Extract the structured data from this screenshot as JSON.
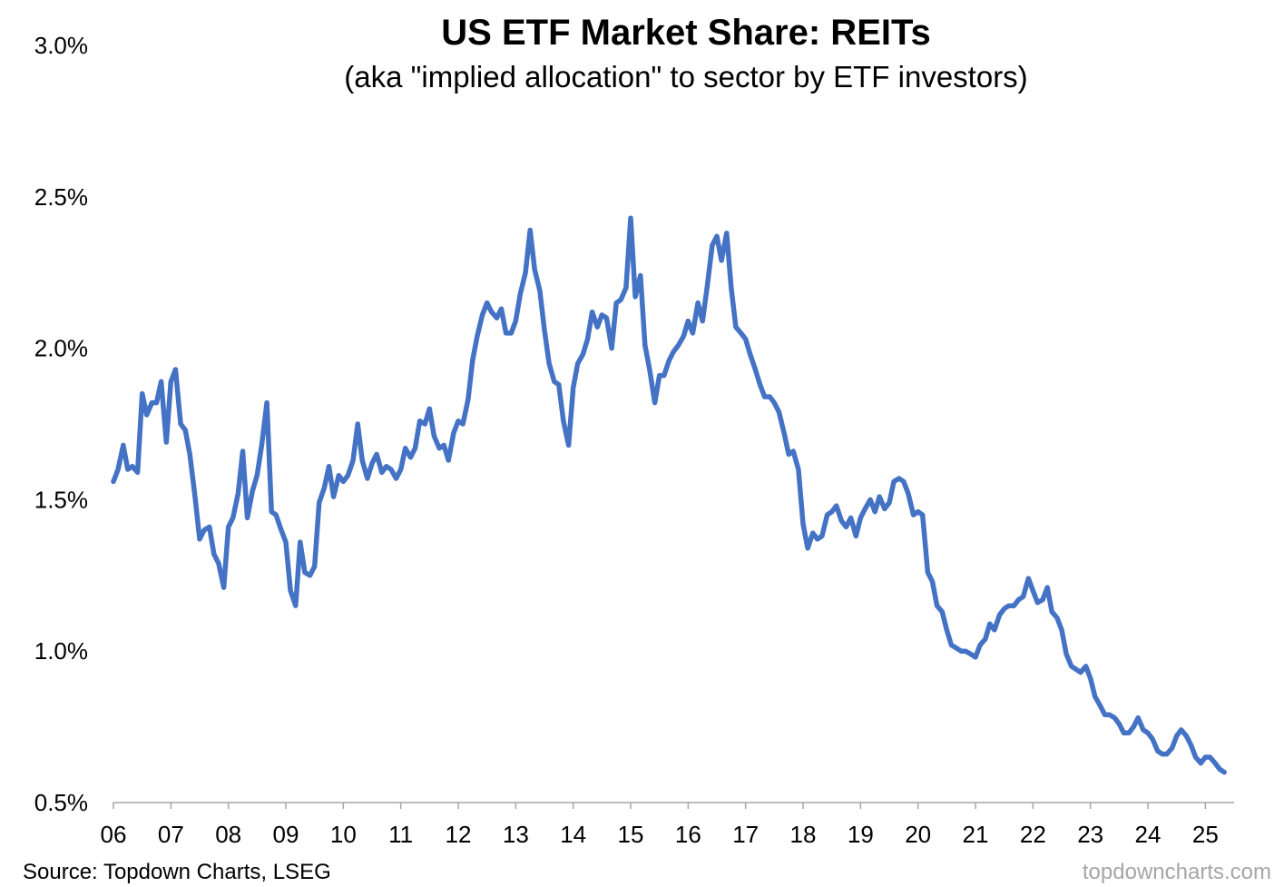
{
  "chart_data": {
    "type": "line",
    "title": "US ETF Market Share: REITs",
    "subtitle": "(aka \"implied allocation\" to sector by ETF investors)",
    "xlabel": "",
    "ylabel": "",
    "ylim": [
      0.5,
      3.0
    ],
    "xlim": [
      2006.0,
      2025.5
    ],
    "y_ticks": [
      {
        "value": 0.5,
        "label": "0.5%"
      },
      {
        "value": 1.0,
        "label": "1.0%"
      },
      {
        "value": 1.5,
        "label": "1.5%"
      },
      {
        "value": 2.0,
        "label": "2.0%"
      },
      {
        "value": 2.5,
        "label": "2.5%"
      },
      {
        "value": 3.0,
        "label": "3.0%"
      }
    ],
    "x_ticks": [
      {
        "value": 2006,
        "label": "06"
      },
      {
        "value": 2007,
        "label": "07"
      },
      {
        "value": 2008,
        "label": "08"
      },
      {
        "value": 2009,
        "label": "09"
      },
      {
        "value": 2010,
        "label": "10"
      },
      {
        "value": 2011,
        "label": "11"
      },
      {
        "value": 2012,
        "label": "12"
      },
      {
        "value": 2013,
        "label": "13"
      },
      {
        "value": 2014,
        "label": "14"
      },
      {
        "value": 2015,
        "label": "15"
      },
      {
        "value": 2016,
        "label": "16"
      },
      {
        "value": 2017,
        "label": "17"
      },
      {
        "value": 2018,
        "label": "18"
      },
      {
        "value": 2019,
        "label": "19"
      },
      {
        "value": 2020,
        "label": "20"
      },
      {
        "value": 2021,
        "label": "21"
      },
      {
        "value": 2022,
        "label": "22"
      },
      {
        "value": 2023,
        "label": "23"
      },
      {
        "value": 2024,
        "label": "24"
      },
      {
        "value": 2025,
        "label": "25"
      }
    ],
    "grid": false,
    "legend": "none",
    "series": [
      {
        "name": "US ETF Market Share: REITs",
        "color": "#4472c4",
        "points": [
          [
            2006.0,
            1.56
          ],
          [
            2006.08,
            1.6
          ],
          [
            2006.17,
            1.68
          ],
          [
            2006.25,
            1.6
          ],
          [
            2006.33,
            1.61
          ],
          [
            2006.42,
            1.59
          ],
          [
            2006.5,
            1.85
          ],
          [
            2006.58,
            1.78
          ],
          [
            2006.67,
            1.82
          ],
          [
            2006.75,
            1.82
          ],
          [
            2006.83,
            1.89
          ],
          [
            2006.92,
            1.69
          ],
          [
            2007.0,
            1.89
          ],
          [
            2007.08,
            1.93
          ],
          [
            2007.17,
            1.75
          ],
          [
            2007.25,
            1.73
          ],
          [
            2007.33,
            1.65
          ],
          [
            2007.42,
            1.51
          ],
          [
            2007.5,
            1.37
          ],
          [
            2007.58,
            1.4
          ],
          [
            2007.67,
            1.41
          ],
          [
            2007.75,
            1.32
          ],
          [
            2007.83,
            1.29
          ],
          [
            2007.92,
            1.21
          ],
          [
            2008.0,
            1.41
          ],
          [
            2008.08,
            1.44
          ],
          [
            2008.17,
            1.52
          ],
          [
            2008.25,
            1.66
          ],
          [
            2008.33,
            1.44
          ],
          [
            2008.42,
            1.53
          ],
          [
            2008.5,
            1.58
          ],
          [
            2008.58,
            1.68
          ],
          [
            2008.67,
            1.82
          ],
          [
            2008.75,
            1.46
          ],
          [
            2008.83,
            1.45
          ],
          [
            2008.92,
            1.4
          ],
          [
            2009.0,
            1.36
          ],
          [
            2009.08,
            1.2
          ],
          [
            2009.17,
            1.15
          ],
          [
            2009.25,
            1.36
          ],
          [
            2009.33,
            1.26
          ],
          [
            2009.42,
            1.25
          ],
          [
            2009.5,
            1.28
          ],
          [
            2009.58,
            1.49
          ],
          [
            2009.67,
            1.54
          ],
          [
            2009.75,
            1.61
          ],
          [
            2009.83,
            1.51
          ],
          [
            2009.92,
            1.58
          ],
          [
            2010.0,
            1.56
          ],
          [
            2010.08,
            1.58
          ],
          [
            2010.17,
            1.63
          ],
          [
            2010.25,
            1.75
          ],
          [
            2010.33,
            1.63
          ],
          [
            2010.42,
            1.57
          ],
          [
            2010.5,
            1.62
          ],
          [
            2010.58,
            1.65
          ],
          [
            2010.67,
            1.59
          ],
          [
            2010.75,
            1.61
          ],
          [
            2010.83,
            1.6
          ],
          [
            2010.92,
            1.57
          ],
          [
            2011.0,
            1.6
          ],
          [
            2011.08,
            1.67
          ],
          [
            2011.17,
            1.64
          ],
          [
            2011.25,
            1.67
          ],
          [
            2011.33,
            1.76
          ],
          [
            2011.42,
            1.75
          ],
          [
            2011.5,
            1.8
          ],
          [
            2011.58,
            1.71
          ],
          [
            2011.67,
            1.67
          ],
          [
            2011.75,
            1.68
          ],
          [
            2011.83,
            1.63
          ],
          [
            2011.92,
            1.72
          ],
          [
            2012.0,
            1.76
          ],
          [
            2012.08,
            1.75
          ],
          [
            2012.17,
            1.83
          ],
          [
            2012.25,
            1.96
          ],
          [
            2012.33,
            2.04
          ],
          [
            2012.42,
            2.11
          ],
          [
            2012.5,
            2.15
          ],
          [
            2012.58,
            2.12
          ],
          [
            2012.67,
            2.1
          ],
          [
            2012.75,
            2.13
          ],
          [
            2012.83,
            2.05
          ],
          [
            2012.92,
            2.05
          ],
          [
            2013.0,
            2.09
          ],
          [
            2013.08,
            2.18
          ],
          [
            2013.17,
            2.25
          ],
          [
            2013.25,
            2.39
          ],
          [
            2013.33,
            2.26
          ],
          [
            2013.42,
            2.19
          ],
          [
            2013.5,
            2.06
          ],
          [
            2013.58,
            1.95
          ],
          [
            2013.67,
            1.89
          ],
          [
            2013.75,
            1.88
          ],
          [
            2013.83,
            1.76
          ],
          [
            2013.92,
            1.68
          ],
          [
            2014.0,
            1.87
          ],
          [
            2014.08,
            1.95
          ],
          [
            2014.17,
            1.98
          ],
          [
            2014.25,
            2.03
          ],
          [
            2014.33,
            2.12
          ],
          [
            2014.42,
            2.07
          ],
          [
            2014.5,
            2.11
          ],
          [
            2014.58,
            2.1
          ],
          [
            2014.67,
            2.0
          ],
          [
            2014.75,
            2.15
          ],
          [
            2014.83,
            2.16
          ],
          [
            2014.92,
            2.2
          ],
          [
            2015.0,
            2.43
          ],
          [
            2015.08,
            2.17
          ],
          [
            2015.17,
            2.24
          ],
          [
            2015.25,
            2.01
          ],
          [
            2015.33,
            1.93
          ],
          [
            2015.42,
            1.82
          ],
          [
            2015.5,
            1.91
          ],
          [
            2015.58,
            1.91
          ],
          [
            2015.67,
            1.96
          ],
          [
            2015.75,
            1.99
          ],
          [
            2015.83,
            2.01
          ],
          [
            2015.92,
            2.04
          ],
          [
            2016.0,
            2.09
          ],
          [
            2016.08,
            2.05
          ],
          [
            2016.17,
            2.15
          ],
          [
            2016.25,
            2.09
          ],
          [
            2016.33,
            2.2
          ],
          [
            2016.42,
            2.34
          ],
          [
            2016.5,
            2.37
          ],
          [
            2016.58,
            2.29
          ],
          [
            2016.67,
            2.38
          ],
          [
            2016.75,
            2.2
          ],
          [
            2016.83,
            2.07
          ],
          [
            2016.92,
            2.05
          ],
          [
            2017.0,
            2.03
          ],
          [
            2017.08,
            1.98
          ],
          [
            2017.17,
            1.93
          ],
          [
            2017.25,
            1.88
          ],
          [
            2017.33,
            1.84
          ],
          [
            2017.42,
            1.84
          ],
          [
            2017.5,
            1.82
          ],
          [
            2017.58,
            1.79
          ],
          [
            2017.67,
            1.72
          ],
          [
            2017.75,
            1.65
          ],
          [
            2017.83,
            1.66
          ],
          [
            2017.92,
            1.6
          ],
          [
            2018.0,
            1.42
          ],
          [
            2018.08,
            1.34
          ],
          [
            2018.17,
            1.39
          ],
          [
            2018.25,
            1.37
          ],
          [
            2018.33,
            1.38
          ],
          [
            2018.42,
            1.45
          ],
          [
            2018.5,
            1.46
          ],
          [
            2018.58,
            1.48
          ],
          [
            2018.67,
            1.43
          ],
          [
            2018.75,
            1.41
          ],
          [
            2018.83,
            1.44
          ],
          [
            2018.92,
            1.38
          ],
          [
            2019.0,
            1.44
          ],
          [
            2019.08,
            1.47
          ],
          [
            2019.17,
            1.5
          ],
          [
            2019.25,
            1.46
          ],
          [
            2019.33,
            1.51
          ],
          [
            2019.42,
            1.47
          ],
          [
            2019.5,
            1.49
          ],
          [
            2019.58,
            1.56
          ],
          [
            2019.67,
            1.57
          ],
          [
            2019.75,
            1.56
          ],
          [
            2019.83,
            1.52
          ],
          [
            2019.92,
            1.45
          ],
          [
            2020.0,
            1.46
          ],
          [
            2020.08,
            1.45
          ],
          [
            2020.17,
            1.26
          ],
          [
            2020.25,
            1.23
          ],
          [
            2020.33,
            1.15
          ],
          [
            2020.42,
            1.13
          ],
          [
            2020.5,
            1.07
          ],
          [
            2020.58,
            1.02
          ],
          [
            2020.67,
            1.01
          ],
          [
            2020.75,
            1.0
          ],
          [
            2020.83,
            1.0
          ],
          [
            2020.92,
            0.99
          ],
          [
            2021.0,
            0.98
          ],
          [
            2021.08,
            1.02
          ],
          [
            2021.17,
            1.04
          ],
          [
            2021.25,
            1.09
          ],
          [
            2021.33,
            1.07
          ],
          [
            2021.42,
            1.12
          ],
          [
            2021.5,
            1.14
          ],
          [
            2021.58,
            1.15
          ],
          [
            2021.67,
            1.15
          ],
          [
            2021.75,
            1.17
          ],
          [
            2021.83,
            1.18
          ],
          [
            2021.92,
            1.24
          ],
          [
            2022.0,
            1.2
          ],
          [
            2022.08,
            1.16
          ],
          [
            2022.17,
            1.17
          ],
          [
            2022.25,
            1.21
          ],
          [
            2022.33,
            1.13
          ],
          [
            2022.42,
            1.11
          ],
          [
            2022.5,
            1.07
          ],
          [
            2022.58,
            0.99
          ],
          [
            2022.67,
            0.95
          ],
          [
            2022.75,
            0.94
          ],
          [
            2022.83,
            0.93
          ],
          [
            2022.92,
            0.95
          ],
          [
            2023.0,
            0.91
          ],
          [
            2023.08,
            0.85
          ],
          [
            2023.17,
            0.82
          ],
          [
            2023.25,
            0.79
          ],
          [
            2023.33,
            0.79
          ],
          [
            2023.42,
            0.78
          ],
          [
            2023.5,
            0.76
          ],
          [
            2023.58,
            0.73
          ],
          [
            2023.67,
            0.73
          ],
          [
            2023.75,
            0.75
          ],
          [
            2023.83,
            0.78
          ],
          [
            2023.92,
            0.74
          ],
          [
            2024.0,
            0.73
          ],
          [
            2024.08,
            0.71
          ],
          [
            2024.17,
            0.67
          ],
          [
            2024.25,
            0.66
          ],
          [
            2024.33,
            0.66
          ],
          [
            2024.42,
            0.68
          ],
          [
            2024.5,
            0.72
          ],
          [
            2024.58,
            0.74
          ],
          [
            2024.67,
            0.72
          ],
          [
            2024.75,
            0.69
          ],
          [
            2024.83,
            0.65
          ],
          [
            2024.92,
            0.63
          ],
          [
            2025.0,
            0.65
          ],
          [
            2025.08,
            0.65
          ],
          [
            2025.17,
            0.63
          ],
          [
            2025.25,
            0.61
          ],
          [
            2025.33,
            0.6
          ]
        ]
      }
    ],
    "source": "Source: Topdown Charts, LSEG",
    "watermark": "topdowncharts.com"
  }
}
